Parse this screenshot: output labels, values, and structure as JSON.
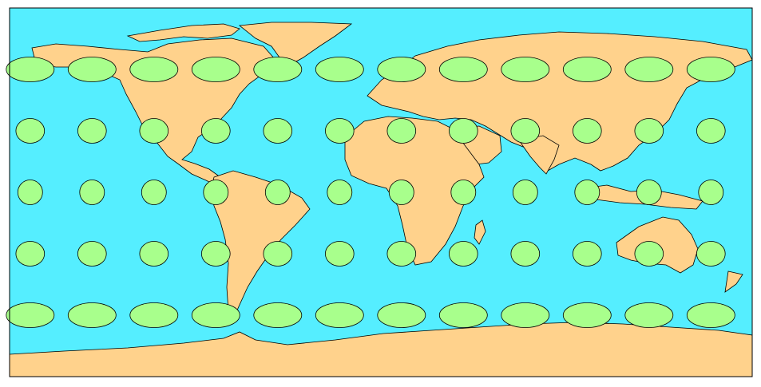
{
  "map": {
    "projection": "equirectangular",
    "colors": {
      "ocean": "#55EEFF",
      "land": "#FFD28C",
      "coastline": "#000000",
      "indicatrix": "#A8FF8C",
      "indicatrix_stroke": "#000000",
      "frame": "#000000"
    },
    "indicatrix": {
      "description_shape": "tissot-ellipse",
      "longitudes": [
        -170,
        -140,
        -110,
        -80,
        -50,
        -20,
        10,
        40,
        70,
        100,
        130,
        160
      ],
      "latitudes": [
        60,
        30,
        0,
        -30,
        -60
      ]
    }
  }
}
